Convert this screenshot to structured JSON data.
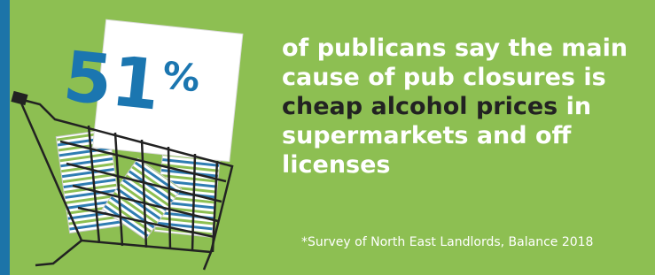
{
  "stat": {
    "number": "51",
    "unit": "%"
  },
  "statement": {
    "lead": "of publicans say the main cause of pub closures is",
    "highlight": "cheap alcohol prices",
    "tail": "in supermarkets and off licenses"
  },
  "footnote": "*Survey of North East Landlords, Balance 2018"
}
